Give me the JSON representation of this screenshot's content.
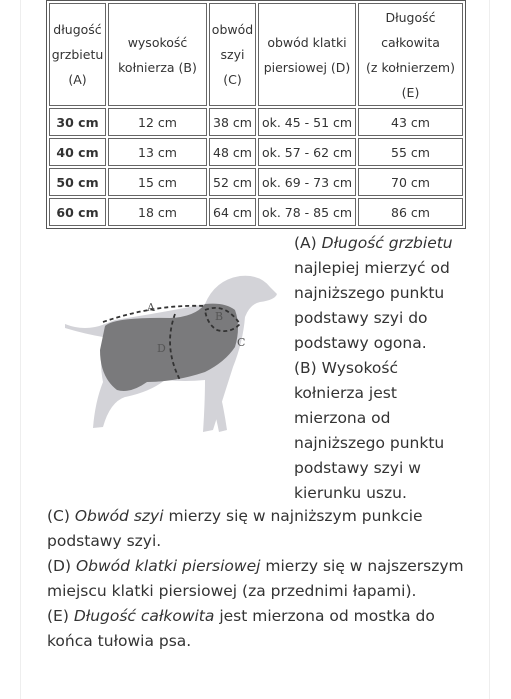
{
  "table": {
    "header": [
      [
        "długość",
        "grzbietu",
        "(A)"
      ],
      [
        "wysokość",
        "kołnierza (B)"
      ],
      [
        "obwód",
        "szyi",
        "(C)"
      ],
      [
        "obwód klatki",
        "piersiowej (D)"
      ],
      [
        "Długość",
        "całkowita",
        "(z kołnierzem)",
        "(E)"
      ]
    ],
    "rows": [
      [
        "30 cm",
        "12 cm",
        "38 cm",
        "ok. 45 - 51 cm",
        "43 cm"
      ],
      [
        "40 cm",
        "13 cm",
        "48 cm",
        "ok. 57 - 62 cm",
        "55 cm"
      ],
      [
        "50 cm",
        "15 cm",
        "52 cm",
        "ok. 69 - 73 cm",
        "70 cm"
      ],
      [
        "60 cm",
        "18 cm",
        "64 cm",
        "ok. 78 - 85 cm",
        "86 cm"
      ]
    ]
  },
  "diagram": {
    "labels": [
      "A",
      "B",
      "C",
      "D"
    ]
  },
  "paragraphs": [
    {
      "prefix": "(A)",
      "term": "Długość grzbietu",
      "text": "najlepiej mierzyć od najniższego punktu podstawy szyi do podstawy ogona."
    },
    {
      "prefix": "(B)",
      "term": "",
      "text": "Wysokość kołnierza jest mierzona od najniższego punktu podstawy szyi w kierunku uszu."
    },
    {
      "prefix": "(C)",
      "term": "Obwód szyi",
      "text": "mierzy się w najniższym punkcie podstawy szyi."
    },
    {
      "prefix": "(D)",
      "term": "Obwód klatki piersiowej",
      "text": "mierzy się w najszerszym miejscu klatki piersiowej (za przednimi łapami)."
    },
    {
      "prefix": "(E)",
      "term": "Długość całkowita",
      "text": "jest mierzona od mostka do końca tułowia psa."
    }
  ]
}
